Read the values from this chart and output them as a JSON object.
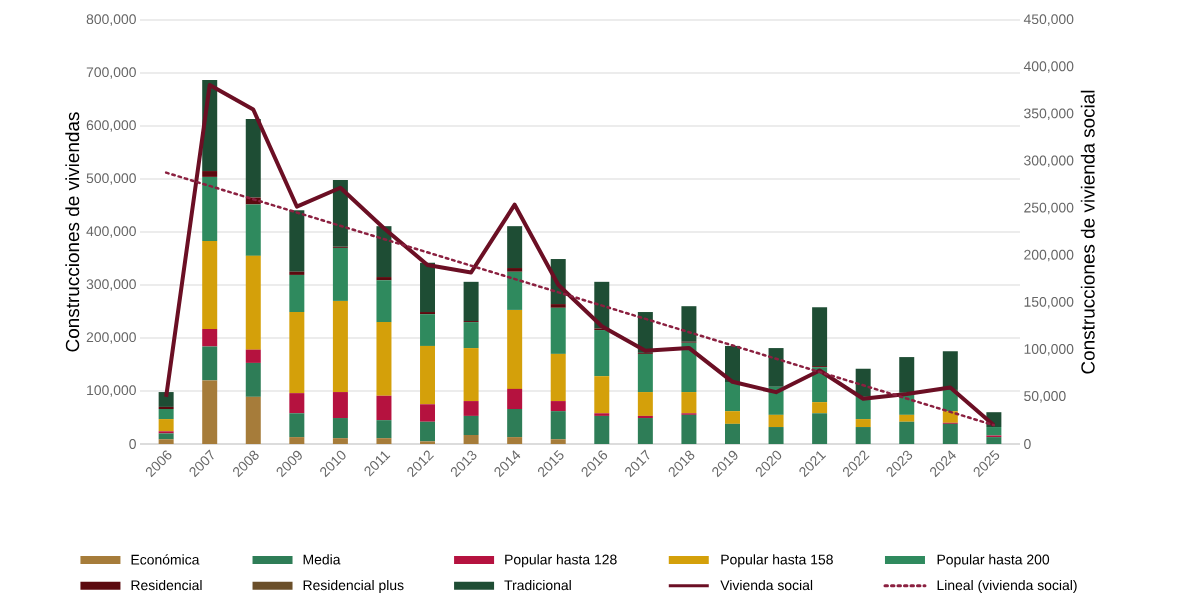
{
  "chart_data": {
    "type": "bar",
    "stacked": true,
    "ylabel": "Construcciones de viviendas",
    "y2label": "Construcciones de vivienda social",
    "x": [
      2006,
      2007,
      2008,
      2009,
      2010,
      2011,
      2012,
      2013,
      2014,
      2015,
      2016,
      2017,
      2018,
      2019,
      2020,
      2021,
      2022,
      2023,
      2024,
      2025
    ],
    "xlim": [
      2005.4,
      2025.6
    ],
    "xticks": [
      2006,
      2007,
      2008,
      2009,
      2010,
      2011,
      2012,
      2013,
      2014,
      2015,
      2016,
      2017,
      2018,
      2019,
      2020,
      2021,
      2022,
      2023,
      2024,
      2025
    ],
    "ylim": [
      0,
      800000
    ],
    "yticks": [
      0,
      {
        "value": 100000,
        "label": "100,000"
      },
      {
        "value": 200000,
        "label": "200,000"
      },
      {
        "value": 300000,
        "label": "300,000"
      },
      {
        "value": 400000,
        "label": "400,000"
      },
      {
        "value": 500000,
        "label": "500,000"
      },
      {
        "value": 600000,
        "label": "600,000"
      },
      {
        "value": 700000,
        "label": "700,000"
      },
      {
        "value": 800000,
        "label": "800,000"
      }
    ],
    "y2lim": [
      0,
      450000
    ],
    "y2ticks": [
      0,
      {
        "value": 50000,
        "label": "50,000"
      },
      {
        "value": 100000,
        "label": "100,000"
      },
      {
        "value": 150000,
        "label": "150,000"
      },
      {
        "value": 200000,
        "label": "200,000"
      },
      {
        "value": 250000,
        "label": "250,000"
      },
      {
        "value": 300000,
        "label": "300,000"
      },
      {
        "value": 350000,
        "label": "350,000"
      },
      {
        "value": 400000,
        "label": "400,000"
      },
      {
        "value": 450000,
        "label": "450,000"
      }
    ],
    "grid": "y",
    "legend": "bottom",
    "series": [
      {
        "name": "Económica",
        "color": "#a67c3a",
        "values": [
          9000,
          120000,
          89000,
          13000,
          11000,
          11000,
          5000,
          17000,
          13000,
          9000,
          0,
          0,
          0,
          0,
          0,
          0,
          0,
          0,
          0,
          0
        ]
      },
      {
        "name": "Media",
        "color": "#2e7d57",
        "values": [
          11000,
          64000,
          64000,
          45000,
          38000,
          34000,
          37000,
          36000,
          53000,
          53000,
          53000,
          49000,
          55000,
          38000,
          32000,
          58000,
          32000,
          42000,
          38000,
          13000
        ]
      },
      {
        "name": "Popular hasta 128",
        "color": "#b5123f",
        "values": [
          4000,
          33000,
          25000,
          38000,
          49000,
          46000,
          33000,
          28000,
          38000,
          19000,
          5000,
          4000,
          3000,
          0,
          0,
          0,
          0,
          0,
          2000,
          3000
        ]
      },
      {
        "name": "Popular hasta 158",
        "color": "#d4a00a",
        "values": [
          23000,
          166000,
          177000,
          153000,
          172000,
          139000,
          110000,
          100000,
          149000,
          89000,
          70000,
          45000,
          40000,
          24000,
          23000,
          21000,
          15000,
          13000,
          22000,
          0
        ]
      },
      {
        "name": "Popular hasta 200",
        "color": "#2f8a5e",
        "values": [
          19000,
          121000,
          97000,
          70000,
          100000,
          79000,
          60000,
          49000,
          72000,
          87000,
          87000,
          72000,
          93000,
          55000,
          53000,
          66000,
          42000,
          43000,
          40000,
          16000
        ]
      },
      {
        "name": "Residencial",
        "color": "#5c0a0f",
        "values": [
          4000,
          11000,
          13000,
          6000,
          2000,
          6000,
          4000,
          2000,
          7000,
          7000,
          3000,
          2000,
          2000,
          0,
          0,
          2000,
          0,
          0,
          0,
          0
        ]
      },
      {
        "name": "Residencial plus",
        "color": "#6b4f2a",
        "values": [
          0,
          0,
          0,
          0,
          0,
          0,
          0,
          0,
          0,
          0,
          0,
          0,
          0,
          0,
          0,
          0,
          0,
          0,
          0,
          0
        ]
      },
      {
        "name": "Tradicional",
        "color": "#1e4d34",
        "values": [
          28000,
          172000,
          148000,
          116000,
          126000,
          96000,
          93000,
          74000,
          79000,
          85000,
          88000,
          77000,
          67000,
          68000,
          73000,
          111000,
          53000,
          66000,
          73000,
          28000
        ]
      },
      {
        "name": "Vivienda social",
        "type": "line",
        "axis": "y2",
        "color": "#6b0f24",
        "values": [
          50000,
          381000,
          355000,
          252000,
          272000,
          229000,
          190000,
          182000,
          254000,
          169000,
          125000,
          99000,
          102000,
          66000,
          55000,
          78000,
          48000,
          53000,
          60000,
          20000
        ]
      },
      {
        "name": "Lineal (vivienda social)",
        "type": "line",
        "axis": "y2",
        "line_style": "dotted",
        "color": "#8b2040",
        "x": [
          2006,
          2025
        ],
        "values": [
          288000,
          20000
        ]
      }
    ]
  }
}
